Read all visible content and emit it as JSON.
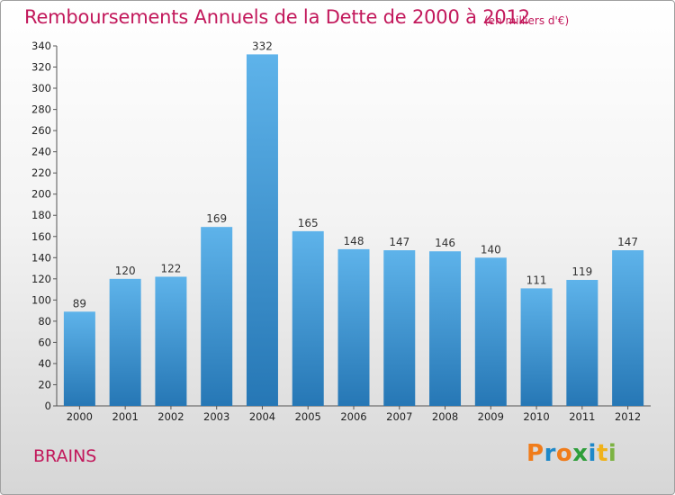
{
  "header": {
    "title": "Remboursements Annuels de la Dette de 2000 à 2012",
    "unit": "(en milliers d'€)"
  },
  "footer": {
    "location": "BRAINS",
    "logo_text": "Proxiti"
  },
  "colors": {
    "accent": "#c2185b",
    "bar_light": "#5eb3ea",
    "bar_dark": "#2677b5",
    "logo_letters": [
      "#f07c1a",
      "#1e88c8",
      "#f07c1a",
      "#2e9e3a",
      "#1e88c8",
      "#f0b21a",
      "#7cb342"
    ]
  },
  "chart_data": {
    "type": "bar",
    "title": "Remboursements Annuels de la Dette de 2000 à 2012",
    "subtitle": "(en milliers d'€)",
    "categories": [
      "2000",
      "2001",
      "2002",
      "2003",
      "2004",
      "2005",
      "2006",
      "2007",
      "2008",
      "2009",
      "2010",
      "2011",
      "2012"
    ],
    "values": [
      89,
      120,
      122,
      169,
      332,
      165,
      148,
      147,
      146,
      140,
      111,
      119,
      147
    ],
    "ylim": [
      0,
      340
    ],
    "yticks": [
      0,
      20,
      40,
      60,
      80,
      100,
      120,
      140,
      160,
      180,
      200,
      220,
      240,
      260,
      280,
      300,
      320,
      340
    ],
    "grid": false,
    "legend": "none"
  }
}
